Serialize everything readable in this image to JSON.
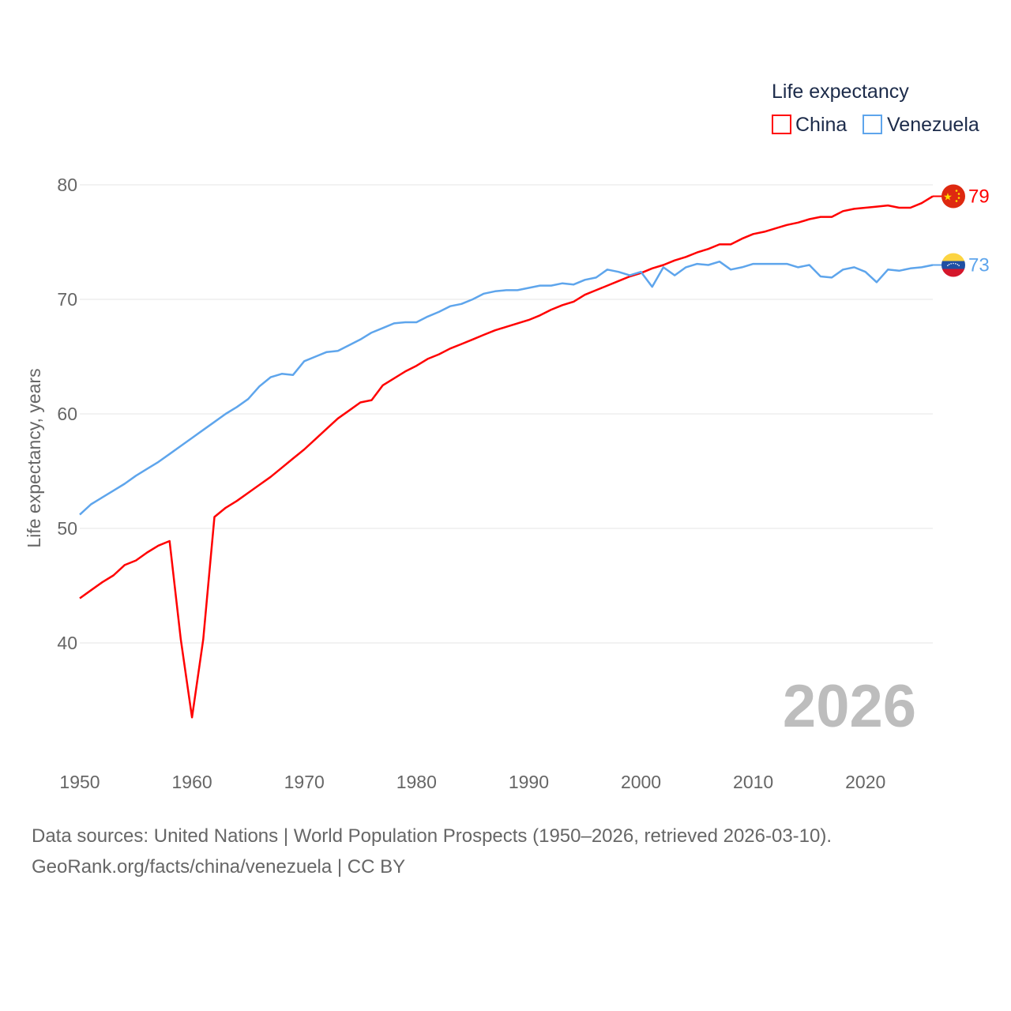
{
  "legend": {
    "title": "Life expectancy",
    "items": [
      "China",
      "Venezuela"
    ]
  },
  "watermark_year": "2026",
  "footer": {
    "line1": "Data sources: United Nations | World Population Prospects (1950–2026, retrieved 2026-03-10).",
    "line2": "GeoRank.org/facts/china/venezuela | CC BY"
  },
  "colors": {
    "china": "#ff0000",
    "venezuela": "#5ea5ec",
    "grid": "#e6e6e6",
    "tick": "#666666",
    "legend_text": "#1c2b4a",
    "watermark": "#bdbdbd"
  },
  "chart_data": {
    "type": "line",
    "title": "Life expectancy",
    "xlabel": "",
    "ylabel": "Life expectancy, years",
    "xlim": [
      1950,
      2026
    ],
    "ylim": [
      40,
      80
    ],
    "grid": true,
    "legend_position": "top-right",
    "x_ticks": [
      "1950",
      "1960",
      "1970",
      "1980",
      "1990",
      "2000",
      "2010",
      "2020"
    ],
    "y_ticks": [
      "40",
      "50",
      "60",
      "70",
      "80"
    ],
    "x": [
      1950,
      1951,
      1952,
      1953,
      1954,
      1955,
      1956,
      1957,
      1958,
      1959,
      1960,
      1961,
      1962,
      1963,
      1964,
      1965,
      1966,
      1967,
      1968,
      1969,
      1970,
      1971,
      1972,
      1973,
      1974,
      1975,
      1976,
      1977,
      1978,
      1979,
      1980,
      1981,
      1982,
      1983,
      1984,
      1985,
      1986,
      1987,
      1988,
      1989,
      1990,
      1991,
      1992,
      1993,
      1994,
      1995,
      1996,
      1997,
      1998,
      1999,
      2000,
      2001,
      2002,
      2003,
      2004,
      2005,
      2006,
      2007,
      2008,
      2009,
      2010,
      2011,
      2012,
      2013,
      2014,
      2015,
      2016,
      2017,
      2018,
      2019,
      2020,
      2021,
      2022,
      2023,
      2024,
      2025,
      2026
    ],
    "series": [
      {
        "name": "China",
        "end_label": "79",
        "flag": "china-flag",
        "values": [
          43.9,
          44.6,
          45.3,
          45.9,
          46.8,
          47.2,
          47.9,
          48.5,
          48.9,
          40.3,
          33.5,
          40.3,
          51.0,
          51.8,
          52.4,
          53.1,
          53.8,
          54.5,
          55.3,
          56.1,
          56.9,
          57.8,
          58.7,
          59.6,
          60.3,
          61.0,
          61.2,
          62.5,
          63.1,
          63.7,
          64.2,
          64.8,
          65.2,
          65.7,
          66.1,
          66.5,
          66.9,
          67.3,
          67.6,
          67.9,
          68.2,
          68.6,
          69.1,
          69.5,
          69.8,
          70.4,
          70.8,
          71.2,
          71.6,
          72.0,
          72.3,
          72.7,
          73.0,
          73.4,
          73.7,
          74.1,
          74.4,
          74.8,
          74.8,
          75.3,
          75.7,
          75.9,
          76.2,
          76.5,
          76.7,
          77.0,
          77.2,
          77.2,
          77.7,
          77.9,
          78.0,
          78.1,
          78.2,
          78.0,
          78.0,
          78.4,
          79.0
        ]
      },
      {
        "name": "Venezuela",
        "end_label": "73",
        "flag": "venezuela-flag",
        "values": [
          51.2,
          52.1,
          52.7,
          53.3,
          53.9,
          54.6,
          55.2,
          55.8,
          56.5,
          57.2,
          57.9,
          58.6,
          59.3,
          60.0,
          60.6,
          61.3,
          62.4,
          63.2,
          63.5,
          63.4,
          64.6,
          65.0,
          65.4,
          65.5,
          66.0,
          66.5,
          67.1,
          67.5,
          67.9,
          68.0,
          68.0,
          68.5,
          68.9,
          69.4,
          69.6,
          70.0,
          70.5,
          70.7,
          70.8,
          70.8,
          71.0,
          71.2,
          71.2,
          71.4,
          71.3,
          71.7,
          71.9,
          72.6,
          72.4,
          72.1,
          72.4,
          71.1,
          72.8,
          72.1,
          72.8,
          73.1,
          73.0,
          73.3,
          72.6,
          72.8,
          73.1,
          73.1,
          73.1,
          73.1,
          72.8,
          73.0,
          72.0,
          71.9,
          72.6,
          72.8,
          72.4,
          71.5,
          72.6,
          72.5,
          72.7,
          72.8,
          73.0
        ]
      }
    ]
  }
}
